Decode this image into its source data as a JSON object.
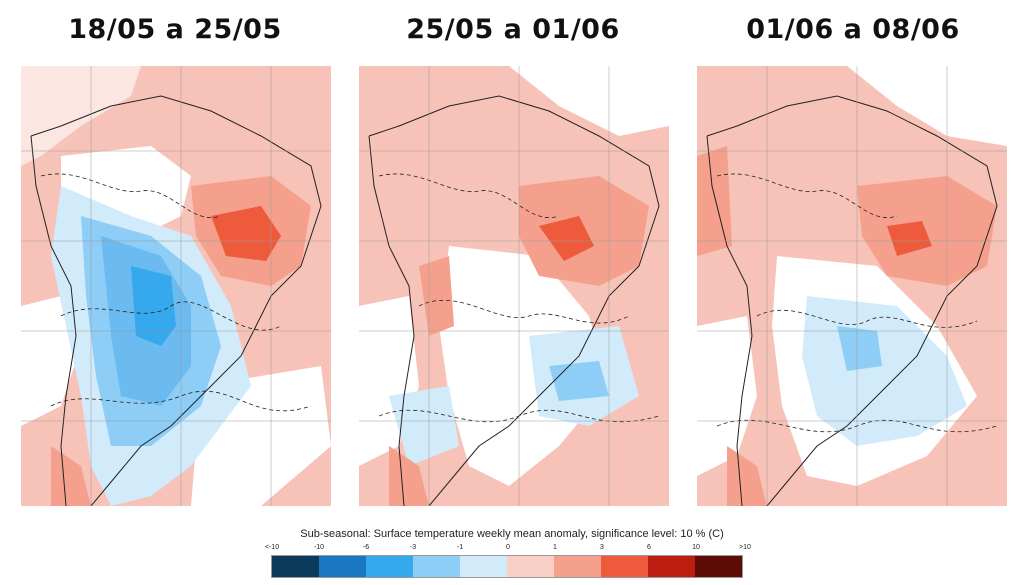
{
  "panels": [
    {
      "title": "18/05 a 25/05"
    },
    {
      "title": "25/05 a 01/06"
    },
    {
      "title": "01/06 a 08/06"
    }
  ],
  "legend": {
    "title": "Sub-seasonal: Surface temperature weekly mean anomaly, significance level: 10 % (C)",
    "ticks": [
      "<-10",
      "-10",
      "-6",
      "-3",
      "-1",
      "0",
      "1",
      "3",
      "6",
      "10",
      ">10"
    ],
    "colors": [
      "#0c3a5c",
      "#1a78c2",
      "#35a8ee",
      "#8ecdf5",
      "#d2ebfb",
      "#f8d0c6",
      "#f4a08c",
      "#ee5a3c",
      "#bb1e10",
      "#5e0d06"
    ]
  }
}
